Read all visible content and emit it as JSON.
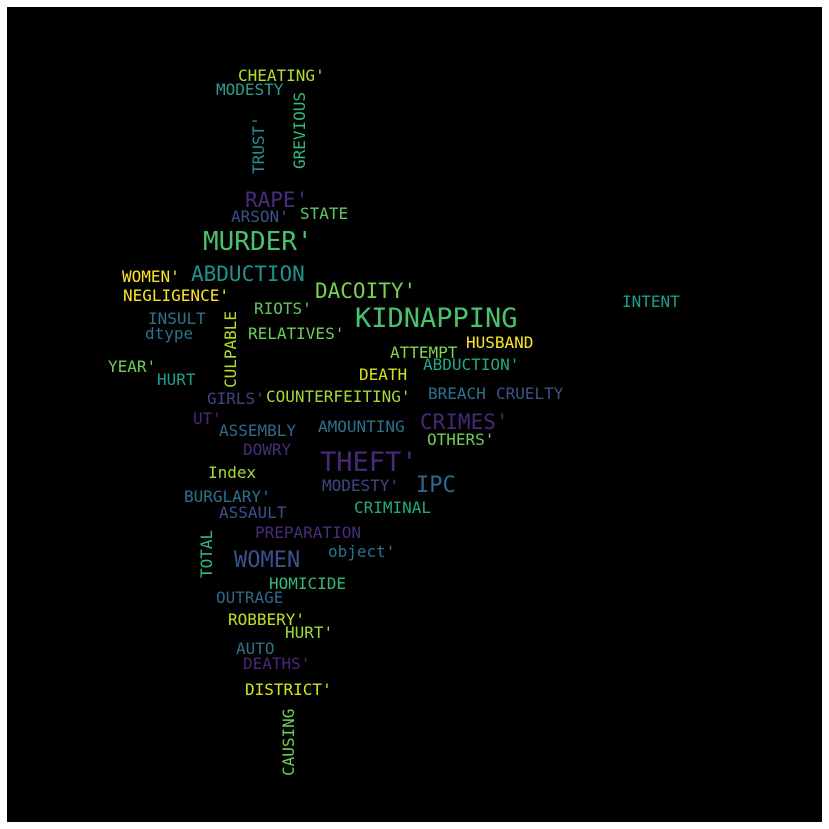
{
  "word_cloud": {
    "words": [
      {
        "text": "CHEATING'",
        "color": "#b5de2b"
      },
      {
        "text": "MODESTY",
        "color": "#2a9d8f"
      },
      {
        "text": "GREVIOUS",
        "color": "#35b779"
      },
      {
        "text": "TRUST'",
        "color": "#21918c"
      },
      {
        "text": "RAPE'",
        "color": "#472d7b"
      },
      {
        "text": "ARSON'",
        "color": "#3b528b"
      },
      {
        "text": "STATE",
        "color": "#5ec962"
      },
      {
        "text": "MURDER'",
        "color": "#4ac16d"
      },
      {
        "text": "WOMEN'",
        "color": "#fde725"
      },
      {
        "text": "ABDUCTION",
        "color": "#21918c"
      },
      {
        "text": "DACOITY'",
        "color": "#7ad151"
      },
      {
        "text": "NEGLIGENCE'",
        "color": "#fde725"
      },
      {
        "text": "RIOTS'",
        "color": "#5ec962"
      },
      {
        "text": "KIDNAPPING",
        "color": "#4ac16d"
      },
      {
        "text": "INTENT",
        "color": "#1f9e89"
      },
      {
        "text": "INSULT",
        "color": "#2c728e"
      },
      {
        "text": "dtype",
        "color": "#2c728e"
      },
      {
        "text": "CULPABLE",
        "color": "#b5de2b"
      },
      {
        "text": "RELATIVES'",
        "color": "#6ece58"
      },
      {
        "text": "HUSBAND",
        "color": "#fde725"
      },
      {
        "text": "ATTEMPT",
        "color": "#86d549"
      },
      {
        "text": "ABDUCTION'",
        "color": "#22a884"
      },
      {
        "text": "YEAR'",
        "color": "#6ece58"
      },
      {
        "text": "HURT",
        "color": "#1f9e89"
      },
      {
        "text": "DEATH",
        "color": "#d8e219"
      },
      {
        "text": "GIRLS'",
        "color": "#414487"
      },
      {
        "text": "COUNTERFEITING'",
        "color": "#a0da39"
      },
      {
        "text": "BREACH",
        "color": "#2c728e"
      },
      {
        "text": "CRUELTY",
        "color": "#3b528b"
      },
      {
        "text": "UT'",
        "color": "#482878"
      },
      {
        "text": "ASSEMBLY",
        "color": "#31688e"
      },
      {
        "text": "AMOUNTING",
        "color": "#2c728e"
      },
      {
        "text": "CRIMES'",
        "color": "#482878"
      },
      {
        "text": "OTHERS'",
        "color": "#6ece58"
      },
      {
        "text": "DOWRY",
        "color": "#472d7b"
      },
      {
        "text": "THEFT'",
        "color": "#482878"
      },
      {
        "text": "Index",
        "color": "#a0da39"
      },
      {
        "text": "MODESTY'",
        "color": "#414487"
      },
      {
        "text": "IPC",
        "color": "#31688e"
      },
      {
        "text": "BURGLARY'",
        "color": "#2c728e"
      },
      {
        "text": "ASSAULT",
        "color": "#3b528b"
      },
      {
        "text": "CRIMINAL",
        "color": "#22a884"
      },
      {
        "text": "PREPARATION",
        "color": "#472d7b"
      },
      {
        "text": "TOTAL",
        "color": "#35b779"
      },
      {
        "text": "WOMEN",
        "color": "#3b528b"
      },
      {
        "text": "object'",
        "color": "#2c728e"
      },
      {
        "text": "HOMICIDE",
        "color": "#35b779"
      },
      {
        "text": "OUTRAGE",
        "color": "#31688e"
      },
      {
        "text": "ROBBERY'",
        "color": "#c2df23"
      },
      {
        "text": "HURT'",
        "color": "#a0da39"
      },
      {
        "text": "AUTO",
        "color": "#2c728e"
      },
      {
        "text": "DEATHS'",
        "color": "#482878"
      },
      {
        "text": "DISTRICT'",
        "color": "#d8e219"
      },
      {
        "text": "CAUSING",
        "color": "#6ece58"
      }
    ]
  }
}
